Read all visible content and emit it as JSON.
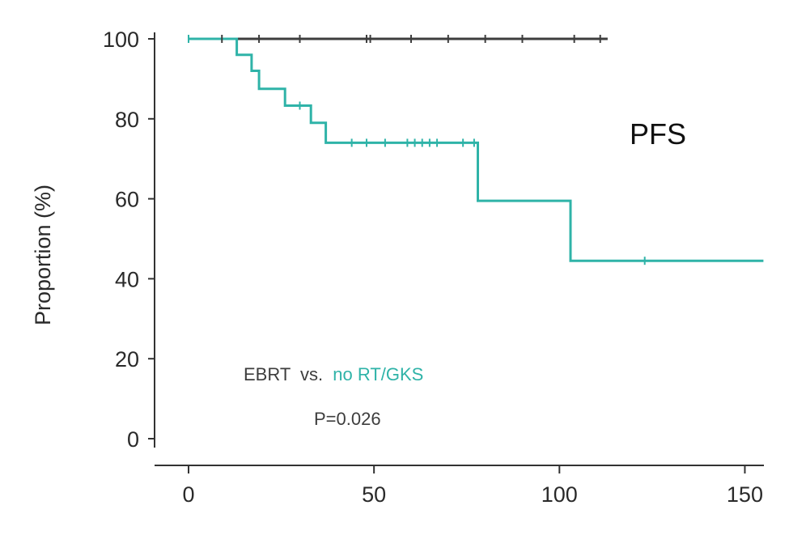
{
  "chart_data": {
    "type": "line",
    "subtype": "kaplan-meier",
    "title": "PFS",
    "xlabel": "",
    "ylabel": "Proportion (%)",
    "xlim": [
      0,
      155
    ],
    "ylim": [
      0,
      100
    ],
    "x_ticks": [
      "0",
      "50",
      "100",
      "150"
    ],
    "y_ticks": [
      "100",
      "80",
      "60",
      "40",
      "20",
      "0"
    ],
    "annotation": {
      "group_a": "EBRT",
      "vs": "vs.",
      "group_b": "no RT/GKS",
      "pvalue": "P=0.026"
    },
    "colors": {
      "EBRT": "#3d3d3d",
      "no RT/GKS": "#2fb3a8",
      "axis": "#333333"
    },
    "series": [
      {
        "name": "EBRT",
        "steps": [
          [
            0,
            100
          ],
          [
            113,
            100
          ]
        ],
        "censored": [
          [
            0,
            100
          ],
          [
            9,
            100
          ],
          [
            19,
            100
          ],
          [
            30,
            100
          ],
          [
            48,
            100
          ],
          [
            49,
            100
          ],
          [
            60,
            100
          ],
          [
            70,
            100
          ],
          [
            80,
            100
          ],
          [
            90,
            100
          ],
          [
            104,
            100
          ],
          [
            111,
            100
          ]
        ]
      },
      {
        "name": "no RT/GKS",
        "steps": [
          [
            0,
            100
          ],
          [
            13,
            100
          ],
          [
            13,
            96
          ],
          [
            17,
            96
          ],
          [
            17,
            92
          ],
          [
            19,
            92
          ],
          [
            19,
            87.5
          ],
          [
            26,
            87.5
          ],
          [
            26,
            83.3
          ],
          [
            33,
            83.3
          ],
          [
            33,
            79
          ],
          [
            37,
            79
          ],
          [
            37,
            74
          ],
          [
            78,
            74
          ],
          [
            78,
            59.5
          ],
          [
            103,
            59.5
          ],
          [
            103,
            44.5
          ],
          [
            155,
            44.5
          ]
        ],
        "censored": [
          [
            0,
            100
          ],
          [
            30,
            83.3
          ],
          [
            44,
            74
          ],
          [
            48,
            74
          ],
          [
            53,
            74
          ],
          [
            59,
            74
          ],
          [
            61,
            74
          ],
          [
            63,
            74
          ],
          [
            65,
            74
          ],
          [
            67,
            74
          ],
          [
            74,
            74
          ],
          [
            77,
            74
          ],
          [
            123,
            44.5
          ]
        ]
      }
    ]
  }
}
